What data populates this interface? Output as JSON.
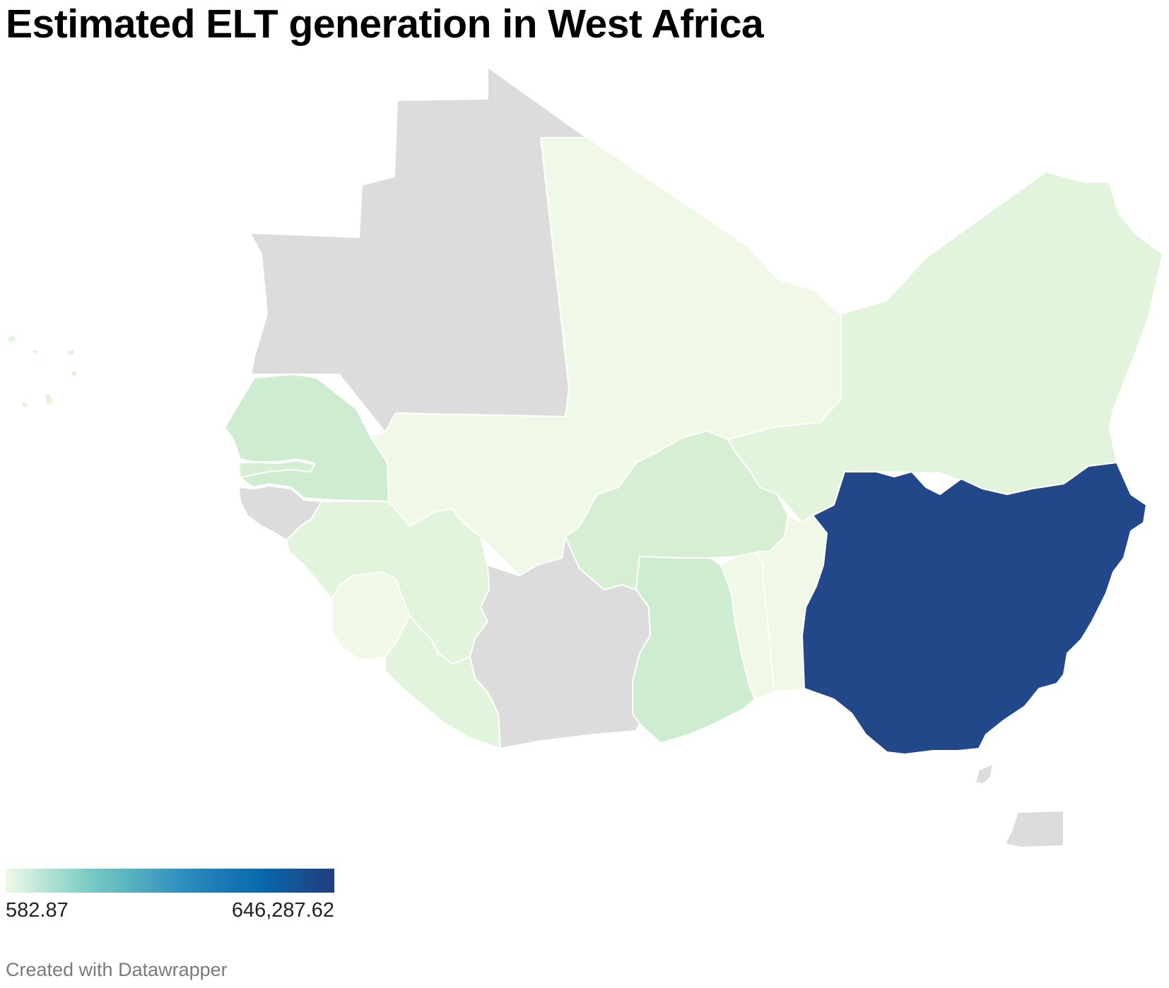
{
  "title": "Estimated ELT generation in West Africa",
  "legend": {
    "min_label": "582.87",
    "max_label": "646,287.62",
    "gradient_colors": [
      "#f0f9e8",
      "#7bccc4",
      "#2b8cbe",
      "#0868ac",
      "#233d7d"
    ]
  },
  "credit": "Created with Datawrapper",
  "colors": {
    "no_data": "#dcdcdc",
    "lowest": "#f0f9e8",
    "low": "#e3f4dd",
    "low_mid": "#d6efd2",
    "mid": "#cdecd0",
    "highest": "#23488a",
    "border": "#ffffff"
  },
  "regions": [
    {
      "id": "mauritania",
      "shade": "no_data"
    },
    {
      "id": "mali",
      "shade": "lowest"
    },
    {
      "id": "niger",
      "shade": "low"
    },
    {
      "id": "senegal",
      "shade": "mid"
    },
    {
      "id": "gambia",
      "shade": "low_mid"
    },
    {
      "id": "guinea-bissau",
      "shade": "no_data"
    },
    {
      "id": "guinea",
      "shade": "low"
    },
    {
      "id": "sierra-leone",
      "shade": "lowest"
    },
    {
      "id": "liberia",
      "shade": "low"
    },
    {
      "id": "cote-divoire",
      "shade": "no_data"
    },
    {
      "id": "burkina-faso",
      "shade": "low_mid"
    },
    {
      "id": "ghana",
      "shade": "mid"
    },
    {
      "id": "togo",
      "shade": "lowest"
    },
    {
      "id": "benin",
      "shade": "lowest"
    },
    {
      "id": "nigeria",
      "shade": "highest"
    },
    {
      "id": "cape-verde",
      "shade": "low"
    },
    {
      "id": "bioko",
      "shade": "no_data"
    },
    {
      "id": "equatorial-guinea",
      "shade": "no_data"
    }
  ]
}
